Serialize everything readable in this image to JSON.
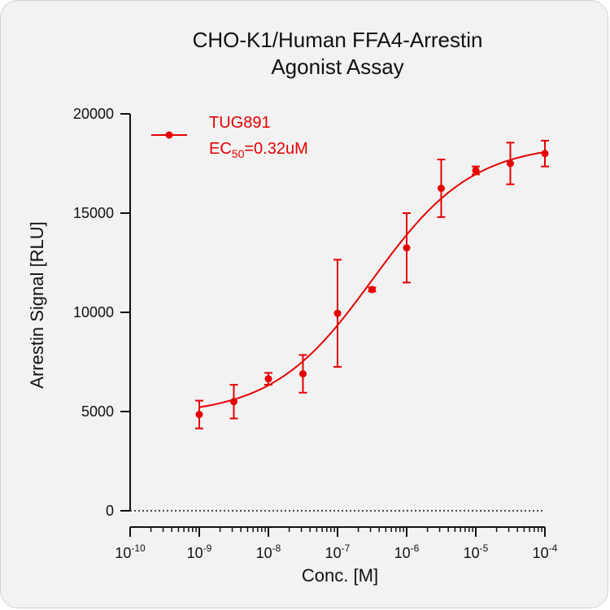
{
  "chart_data": {
    "type": "scatter",
    "title_line1": "CHO-K1/Human FFA4-Arrestin",
    "title_line2": "Agonist Assay",
    "xlabel": "Conc. [M]",
    "ylabel": "Arrestin Signal [RLU]",
    "xscale": "log",
    "xlim": [
      1e-10,
      0.0001
    ],
    "ylim": [
      0,
      20000
    ],
    "x_ticks": [
      {
        "base": "10",
        "exp": "-10"
      },
      {
        "base": "10",
        "exp": "-9"
      },
      {
        "base": "10",
        "exp": "-8"
      },
      {
        "base": "10",
        "exp": "-7"
      },
      {
        "base": "10",
        "exp": "-6"
      },
      {
        "base": "10",
        "exp": "-5"
      },
      {
        "base": "10",
        "exp": "-4"
      }
    ],
    "y_ticks": [
      "0",
      "5000",
      "10000",
      "15000",
      "20000"
    ],
    "y_tick_values": [
      0,
      5000,
      10000,
      15000,
      20000
    ],
    "grid": false,
    "baseline": "dotted line at y = 0",
    "legend": {
      "placement": "top-left",
      "series_name": "TUG891",
      "ec50_prefix": "EC",
      "ec50_sub": "50",
      "ec50_suffix": "=0.32uM"
    },
    "series": [
      {
        "name": "TUG891",
        "color": "#e60000",
        "x": [
          1e-09,
          3.16e-09,
          1e-08,
          3.16e-08,
          1e-07,
          3.16e-07,
          1e-06,
          3.16e-06,
          1e-05,
          3.16e-05,
          0.0001
        ],
        "y": [
          4850,
          5500,
          6650,
          6900,
          9950,
          11150,
          13250,
          16250,
          17150,
          17500,
          18000
        ],
        "error": [
          700,
          850,
          300,
          950,
          2700,
          100,
          1750,
          1450,
          200,
          1050,
          650
        ],
        "fit": {
          "model": "4PL",
          "bottom": 4800,
          "top": 18500,
          "ec50": 3.2e-07,
          "hill": 0.6
        }
      }
    ]
  }
}
